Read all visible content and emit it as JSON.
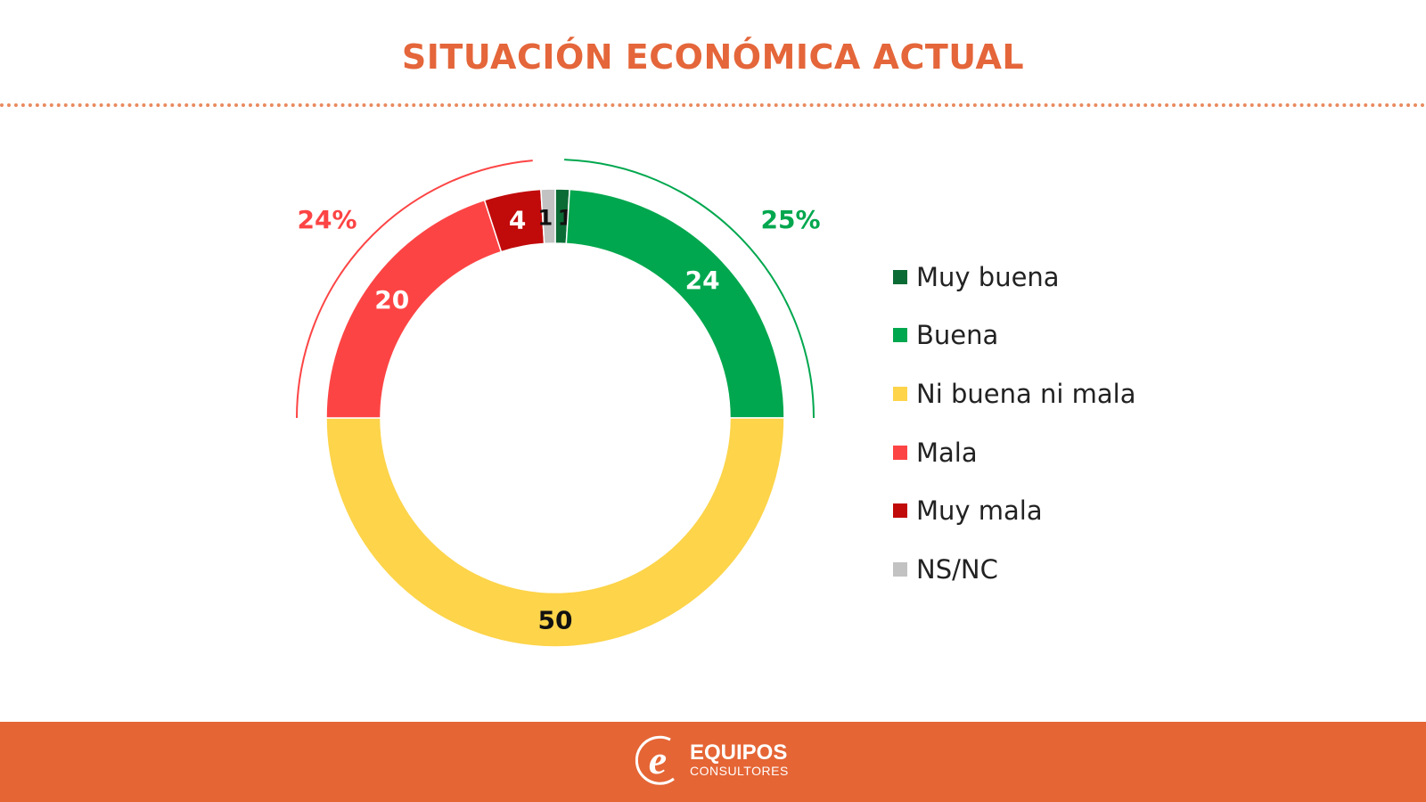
{
  "chart_data": {
    "type": "pie",
    "subtype": "donut",
    "title": "SITUACIÓN ECONÓMICA ACTUAL",
    "categories": [
      "Muy buena",
      "Buena",
      "Ni buena ni mala",
      "Mala",
      "Muy mala",
      "NS/NC"
    ],
    "values": [
      1,
      24,
      50,
      20,
      4,
      1
    ],
    "colors": [
      "#0b6b35",
      "#00a74e",
      "#fdd44a",
      "#fd4444",
      "#c10a0a",
      "#c2c2c2"
    ],
    "label_colors": [
      "#111111",
      "#ffffff",
      "#111111",
      "#ffffff",
      "#ffffff",
      "#111111"
    ],
    "labels": [
      "1",
      "24",
      "50",
      "20",
      "4",
      "1"
    ],
    "legend_position": "right",
    "group_annotations": [
      {
        "label": "24%",
        "color": "#fd4444",
        "categories": [
          "Mala",
          "Muy mala"
        ]
      },
      {
        "label": "25%",
        "color": "#00a74e",
        "categories": [
          "Muy buena",
          "Buena"
        ]
      }
    ]
  },
  "footer": {
    "brand_line1": "EQUIPOS",
    "brand_line2": "CONSULTORES",
    "color": "#e56535"
  }
}
